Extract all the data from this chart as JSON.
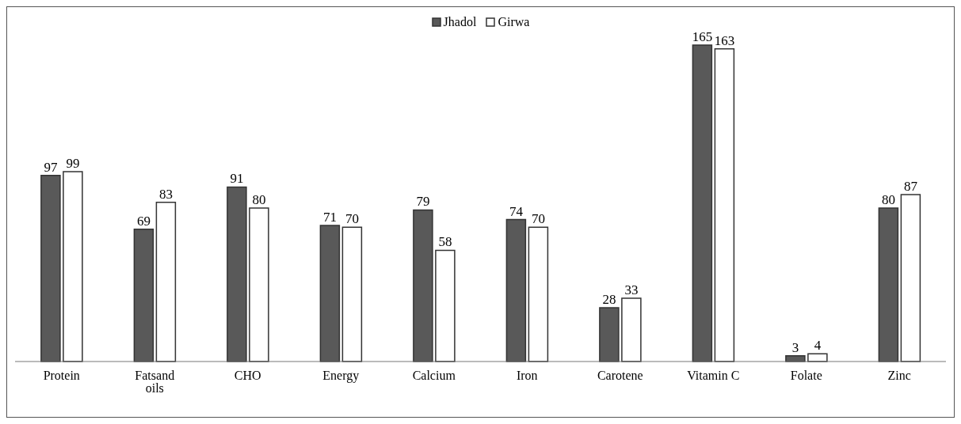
{
  "chart_data": {
    "type": "bar",
    "categories": [
      "Protein",
      "Fatsand oils",
      "CHO",
      "Energy",
      "Calcium",
      "Iron",
      "Carotene",
      "Vitamin C",
      "Folate",
      "Zinc"
    ],
    "series": [
      {
        "name": "Jhadol",
        "color": "#595959",
        "values": [
          97,
          69,
          91,
          71,
          79,
          74,
          28,
          165,
          3,
          80
        ]
      },
      {
        "name": "Girwa",
        "color": "#ffffff",
        "values": [
          99,
          83,
          80,
          70,
          58,
          70,
          33,
          163,
          4,
          87
        ]
      }
    ],
    "data_labels": true,
    "legend": "top",
    "grid": false
  }
}
